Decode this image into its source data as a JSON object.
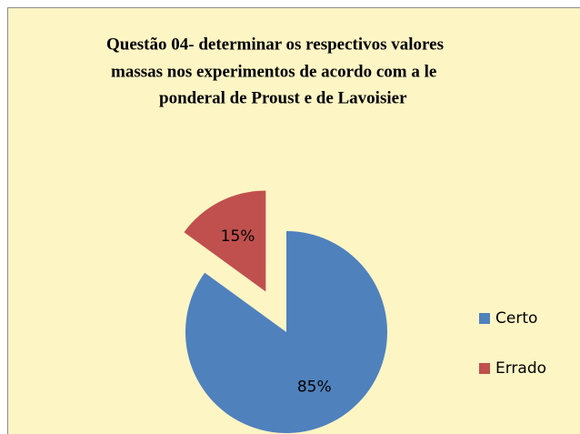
{
  "chart_data": {
    "type": "pie",
    "title": [
      "Questão 04- determinar os respectivos valores",
      "massas nos experimentos de acordo com a le",
      "ponderal de Proust e de Lavoisier"
    ],
    "categories": [
      "Certo",
      "Errado"
    ],
    "values": [
      85,
      15
    ],
    "value_labels": [
      "85%",
      "15%"
    ],
    "colors": [
      "#4f81bd",
      "#c0504d"
    ],
    "explode": [
      false,
      true
    ],
    "legend": "right"
  }
}
